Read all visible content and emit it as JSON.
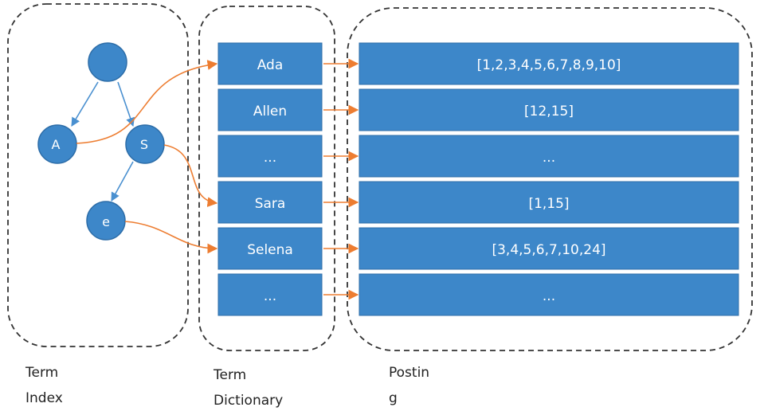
{
  "colors": {
    "box_fill": "#3d87c9",
    "box_stroke": "#2d6da8",
    "box_text": "#ffffff",
    "arrow_blue": "#4a90d0",
    "arrow_orange": "#ed7d31",
    "dash": "#333333",
    "caption_text": "#222222"
  },
  "term_index": {
    "nodes": [
      {
        "id": "root",
        "label": ""
      },
      {
        "id": "a",
        "label": "A"
      },
      {
        "id": "s",
        "label": "S"
      },
      {
        "id": "e",
        "label": "e"
      }
    ],
    "caption_line1": "Term",
    "caption_line2": "Index"
  },
  "term_dictionary": {
    "entries": [
      "Ada",
      "Allen",
      "...",
      "Sara",
      "Selena",
      "..."
    ],
    "caption_line1": "Term",
    "caption_line2": "Dictionary"
  },
  "posting": {
    "lists": [
      "[1,2,3,4,5,6,7,8,9,10]",
      "[12,15]",
      "...",
      "[1,15]",
      "[3,4,5,6,7,10,24]",
      "..."
    ],
    "caption_line1": "Postin",
    "caption_line2": "g"
  }
}
